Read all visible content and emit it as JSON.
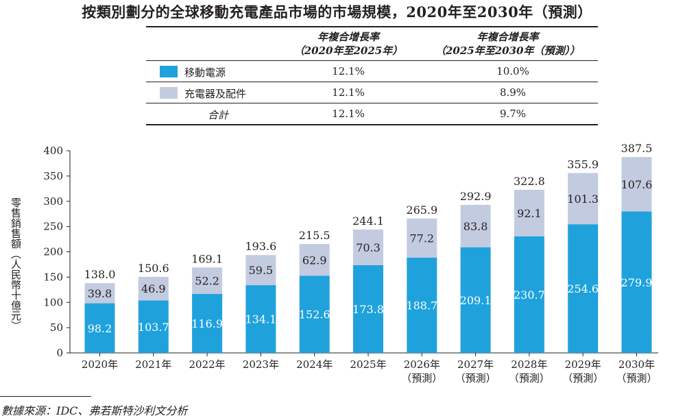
{
  "title": "按類別劃分的全球移動充電產品市場的市場規模，2020年至2030年（預測）",
  "table": {
    "headers": [
      {
        "line1": "年複合增長率",
        "line2": "（2020年至2025年）"
      },
      {
        "line1": "年複合增長率",
        "line2": "（2025年至2030年（預測））"
      }
    ],
    "rows": [
      {
        "label": "移動電源",
        "color": "#1fa2dc",
        "v1": "12.1%",
        "v2": "10.0%"
      },
      {
        "label": "充電器及配件",
        "color": "#c3cbe0",
        "v1": "12.1%",
        "v2": "8.9%"
      },
      {
        "label": "合計",
        "v1": "12.1%",
        "v2": "9.7%"
      }
    ]
  },
  "chart_data": {
    "type": "bar",
    "stacked": true,
    "categories": [
      [
        "2020年"
      ],
      [
        "2021年"
      ],
      [
        "2022年"
      ],
      [
        "2023年"
      ],
      [
        "2024年"
      ],
      [
        "2025年"
      ],
      [
        "2026年",
        "（預測）"
      ],
      [
        "2027年",
        "（預測）"
      ],
      [
        "2028年",
        "（預測）"
      ],
      [
        "2029年",
        "（預測）"
      ],
      [
        "2030年",
        "（預測）"
      ]
    ],
    "series": [
      {
        "name": "移動電源",
        "color": "#1fa2dc",
        "values": [
          98.2,
          103.7,
          116.9,
          134.1,
          152.6,
          173.8,
          188.7,
          209.1,
          230.7,
          254.6,
          279.9
        ]
      },
      {
        "name": "充電器及配件",
        "color": "#c3cbe0",
        "values": [
          39.8,
          46.9,
          52.2,
          59.5,
          62.9,
          70.3,
          77.2,
          83.8,
          92.1,
          101.3,
          107.6
        ]
      }
    ],
    "totals": [
      138.0,
      150.6,
      169.1,
      193.6,
      215.5,
      244.1,
      265.9,
      292.9,
      322.8,
      355.9,
      387.5
    ],
    "ylabel": "零售銷售額（人民幣十億元）",
    "ylim": [
      0,
      400
    ],
    "yticks": [
      0,
      50,
      100,
      150,
      200,
      250,
      300,
      350,
      400
    ]
  },
  "source": "數據來源：IDC、弗若斯特沙利文分析"
}
